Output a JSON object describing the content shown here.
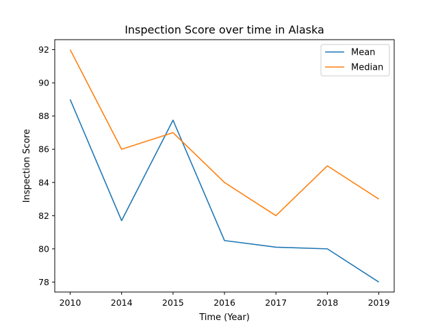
{
  "chart_data": {
    "type": "line",
    "title": "Inspection Score over time in Alaska",
    "xlabel": "Time (Year)",
    "ylabel": "Inspection Score",
    "categories": [
      "2010",
      "2014",
      "2015",
      "2016",
      "2017",
      "2018",
      "2019"
    ],
    "ylim": [
      77.4,
      92.6
    ],
    "yticks": [
      78,
      80,
      82,
      84,
      86,
      88,
      90,
      92
    ],
    "grid": false,
    "legend": "top-right",
    "series": [
      {
        "name": "Mean",
        "color": "#1f77b4",
        "values": [
          89.0,
          81.7,
          87.75,
          80.5,
          80.1,
          80.0,
          78.0
        ]
      },
      {
        "name": "Median",
        "color": "#ff7f0e",
        "values": [
          92.0,
          86.0,
          87.0,
          84.0,
          82.0,
          85.0,
          83.0
        ]
      }
    ]
  }
}
